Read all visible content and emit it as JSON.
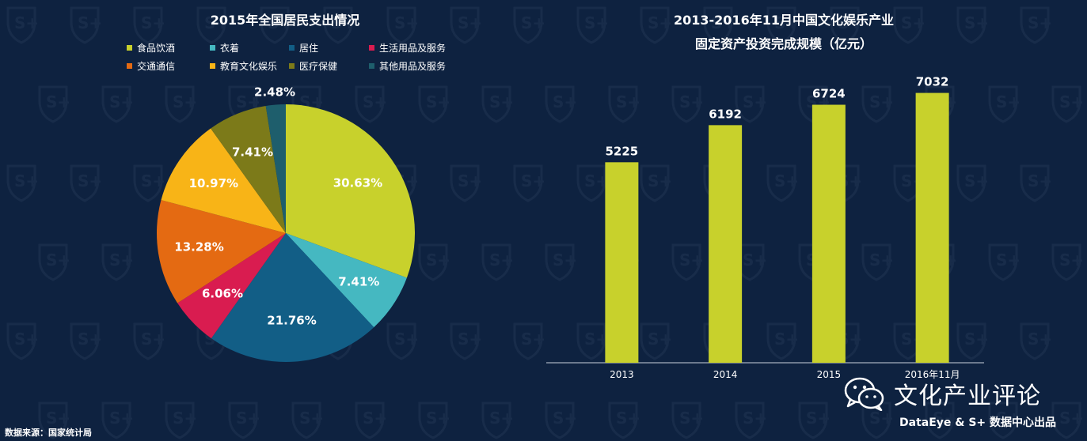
{
  "charts": {
    "pie": {
      "title": "2015年全国居民支出情况"
    },
    "bar": {
      "title_line1": "2013-2016年11月中国文化娱乐产业",
      "title_line2": "固定资产投资完成规模（亿元）"
    }
  },
  "chart_data": [
    {
      "type": "pie",
      "title": "2015年全国居民支出情况",
      "legend_placement": "top",
      "slices": [
        {
          "label": "食品饮酒",
          "value": 30.63,
          "display": "30.63%",
          "color": "#c8d12c"
        },
        {
          "label": "衣着",
          "value": 7.41,
          "display": "7.41%",
          "color": "#45b8c1"
        },
        {
          "label": "居住",
          "value": 21.76,
          "display": "21.76%",
          "color": "#125e86"
        },
        {
          "label": "生活用品及服务",
          "value": 6.06,
          "display": "6.06%",
          "color": "#d91c50"
        },
        {
          "label": "交通通信",
          "value": 13.28,
          "display": "13.28%",
          "color": "#e46a12"
        },
        {
          "label": "教育文化娱乐",
          "value": 10.97,
          "display": "10.97%",
          "color": "#f8b417"
        },
        {
          "label": "医疗保健",
          "value": 7.41,
          "display": "7.41%",
          "color": "#7c7a19"
        },
        {
          "label": "其他用品及服务",
          "value": 2.48,
          "display": "2.48%",
          "color": "#1e5e6c"
        }
      ]
    },
    {
      "type": "bar",
      "title": "2013-2016年11月中国文化娱乐产业固定资产投资完成规模（亿元）",
      "categories": [
        "2013",
        "2014",
        "2015",
        "2016年11月"
      ],
      "values": [
        5225,
        6192,
        6724,
        7032
      ],
      "ylim": [
        0,
        7600
      ],
      "bar_color": "#c8d12c",
      "grid": false
    }
  ],
  "footer": {
    "source": "数据来源：国家统计局",
    "brand_name": "文化产业评论",
    "credit": "DataEye & S+ 数据中心出品",
    "brand_icon": "wechat-icon"
  },
  "colors": {
    "background": "#0e2240",
    "text": "#ffffff"
  }
}
